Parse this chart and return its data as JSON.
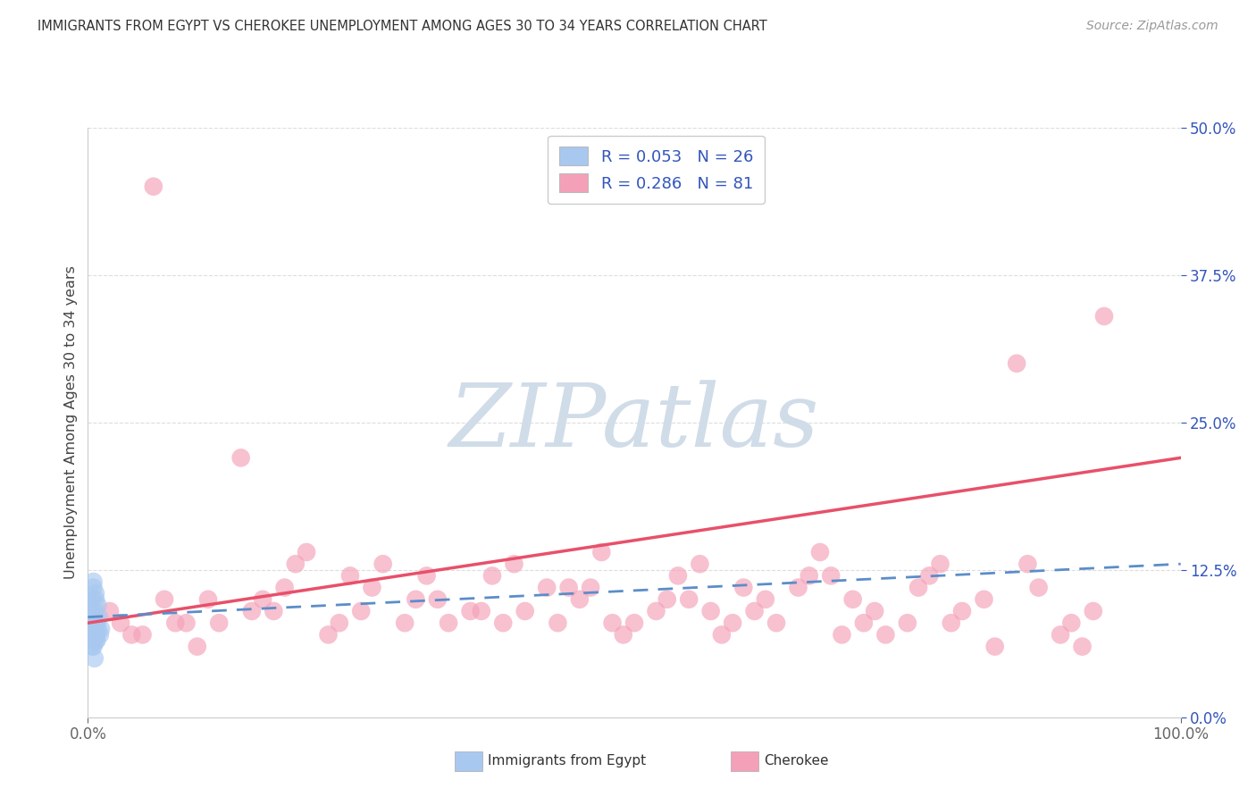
{
  "title": "IMMIGRANTS FROM EGYPT VS CHEROKEE UNEMPLOYMENT AMONG AGES 30 TO 34 YEARS CORRELATION CHART",
  "source": "Source: ZipAtlas.com",
  "ylabel": "Unemployment Among Ages 30 to 34 years",
  "xlim": [
    0,
    100
  ],
  "ylim": [
    0,
    50
  ],
  "ytick_values": [
    0,
    12.5,
    25.0,
    37.5,
    50.0
  ],
  "egypt_color": "#a8c8f0",
  "cherokee_color": "#f4a0b8",
  "egypt_line_color": "#5b8dc9",
  "cherokee_line_color": "#e8506a",
  "title_color": "#333333",
  "source_color": "#999999",
  "legend_text_color": "#3355bb",
  "background_color": "#ffffff",
  "grid_color": "#dddddd",
  "watermark_text": "ZIPatlas",
  "watermark_color": "#d0dce8",
  "bottom_legend": [
    "Immigrants from Egypt",
    "Cherokee"
  ],
  "egypt_x": [
    0.3,
    0.5,
    0.4,
    0.8,
    0.6,
    0.2,
    1.0,
    0.7,
    0.9,
    0.5,
    0.3,
    0.6,
    0.4,
    0.8,
    1.2,
    0.7,
    0.9,
    0.3,
    0.6,
    1.1,
    0.5,
    0.4,
    0.8,
    0.2,
    0.7,
    0.6
  ],
  "egypt_y": [
    8.0,
    6.0,
    10.0,
    7.0,
    5.0,
    9.0,
    8.5,
    6.5,
    7.5,
    11.0,
    7.0,
    9.0,
    6.0,
    8.0,
    7.5,
    10.5,
    9.5,
    6.5,
    8.5,
    7.0,
    11.5,
    8.0,
    6.5,
    9.5,
    10.0,
    7.0
  ],
  "cherokee_x": [
    2.0,
    4.0,
    6.0,
    8.0,
    11.0,
    14.0,
    17.0,
    20.0,
    23.0,
    27.0,
    30.0,
    33.0,
    37.0,
    40.0,
    44.0,
    47.0,
    50.0,
    54.0,
    57.0,
    60.0,
    63.0,
    67.0,
    70.0,
    73.0,
    77.0,
    80.0,
    83.0,
    87.0,
    90.0,
    93.0,
    3.0,
    7.0,
    10.0,
    15.0,
    19.0,
    22.0,
    26.0,
    29.0,
    32.0,
    36.0,
    39.0,
    43.0,
    46.0,
    49.0,
    53.0,
    56.0,
    59.0,
    62.0,
    66.0,
    69.0,
    72.0,
    76.0,
    79.0,
    82.0,
    86.0,
    89.0,
    92.0,
    5.0,
    12.0,
    18.0,
    25.0,
    31.0,
    38.0,
    45.0,
    52.0,
    58.0,
    65.0,
    71.0,
    78.0,
    85.0,
    91.0,
    9.0,
    16.0,
    24.0,
    35.0,
    42.0,
    48.0,
    55.0,
    61.0,
    68.0,
    75.0
  ],
  "cherokee_y": [
    9.0,
    7.0,
    45.0,
    8.0,
    10.0,
    22.0,
    9.0,
    14.0,
    8.0,
    13.0,
    10.0,
    8.0,
    12.0,
    9.0,
    11.0,
    14.0,
    8.0,
    12.0,
    9.0,
    11.0,
    8.0,
    14.0,
    10.0,
    7.0,
    12.0,
    9.0,
    6.0,
    11.0,
    8.0,
    34.0,
    8.0,
    10.0,
    6.0,
    9.0,
    13.0,
    7.0,
    11.0,
    8.0,
    10.0,
    9.0,
    13.0,
    8.0,
    11.0,
    7.0,
    10.0,
    13.0,
    8.0,
    10.0,
    12.0,
    7.0,
    9.0,
    11.0,
    8.0,
    10.0,
    13.0,
    7.0,
    9.0,
    7.0,
    8.0,
    11.0,
    9.0,
    12.0,
    8.0,
    10.0,
    9.0,
    7.0,
    11.0,
    8.0,
    13.0,
    30.0,
    6.0,
    8.0,
    10.0,
    12.0,
    9.0,
    11.0,
    8.0,
    10.0,
    9.0,
    12.0,
    8.0
  ],
  "cherokee_trend_x0": 0,
  "cherokee_trend_x1": 100,
  "cherokee_trend_y0": 8.0,
  "cherokee_trend_y1": 22.0,
  "egypt_trend_x0": 0,
  "egypt_trend_x1": 100,
  "egypt_trend_y0": 8.5,
  "egypt_trend_y1": 13.0
}
